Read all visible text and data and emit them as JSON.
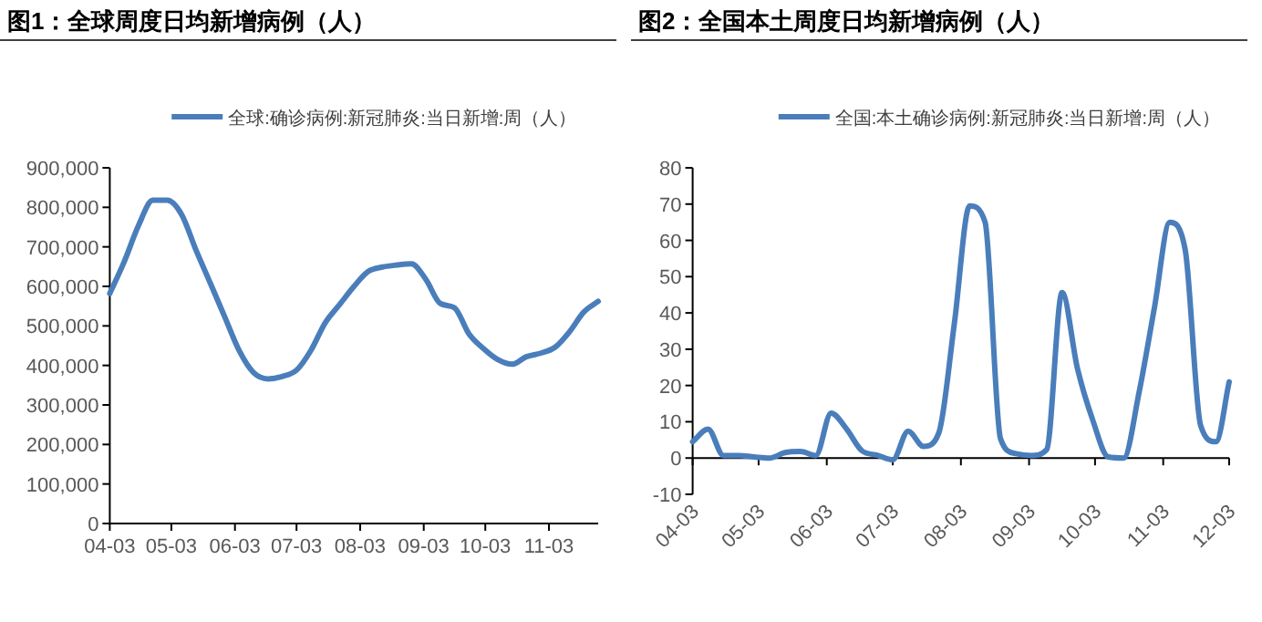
{
  "chart_data": [
    {
      "type": "line",
      "title": "图1：全球周度日均新增病例（人）",
      "legend": "top",
      "grid": false,
      "marker": "none",
      "line_style": "solid",
      "x": [
        "--04-03",
        "--04-10",
        "--04-17",
        "--04-24",
        "--05-01",
        "--05-08",
        "--05-15",
        "--05-22",
        "--05-29",
        "--06-05",
        "--06-12",
        "--06-19",
        "--06-26",
        "--07-03",
        "--07-10",
        "--07-17",
        "--07-24",
        "--07-31",
        "--08-07",
        "--08-14",
        "--08-21",
        "--08-28",
        "--09-04",
        "--09-11",
        "--09-18",
        "--09-25",
        "--10-02",
        "--10-09",
        "--10-16",
        "--10-23",
        "--10-30",
        "--11-06",
        "--11-13",
        "--11-20",
        "--11-27"
      ],
      "series": [
        {
          "name": "全球:确诊病例:新冠肺炎:当日新增:周（人）",
          "color": "#4a7ebb",
          "values": [
            582000,
            662000,
            754000,
            818000,
            818000,
            782000,
            692000,
            608000,
            523000,
            438000,
            382000,
            366000,
            372000,
            388000,
            438000,
            508000,
            554000,
            600000,
            638000,
            649000,
            654000,
            657000,
            618000,
            557000,
            546000,
            480000,
            443000,
            415000,
            403000,
            422000,
            431000,
            446000,
            485000,
            535000,
            562000
          ]
        }
      ],
      "xlim": [
        "--04-03",
        "--11-27"
      ],
      "xticks": [
        {
          "value": "--04-03",
          "label": "04-03"
        },
        {
          "value": "--05-03",
          "label": "05-03"
        },
        {
          "value": "--06-03",
          "label": "06-03"
        },
        {
          "value": "--07-03",
          "label": "07-03"
        },
        {
          "value": "--08-03",
          "label": "08-03"
        },
        {
          "value": "--09-03",
          "label": "09-03"
        },
        {
          "value": "--10-03",
          "label": "10-03"
        },
        {
          "value": "--11-03",
          "label": "11-03"
        }
      ],
      "ylim": [
        0,
        900000
      ],
      "yticks": [
        0,
        {
          "value": 100000,
          "label": "100,000"
        },
        {
          "value": 200000,
          "label": "200,000"
        },
        {
          "value": 300000,
          "label": "300,000"
        },
        {
          "value": 400000,
          "label": "400,000"
        },
        {
          "value": 500000,
          "label": "500,000"
        },
        {
          "value": 600000,
          "label": "600,000"
        },
        {
          "value": 700000,
          "label": "700,000"
        },
        {
          "value": 800000,
          "label": "800,000"
        },
        {
          "value": 900000,
          "label": "900,000"
        }
      ]
    },
    {
      "type": "line",
      "title": "图2：全国本土周度日均新增病例（人）",
      "legend": "top",
      "marker": "none",
      "line_style": "solid",
      "x": [
        "--04-03",
        "--04-10",
        "--04-17",
        "--04-24",
        "--05-01",
        "--05-08",
        "--05-15",
        "--05-22",
        "--05-29",
        "--06-05",
        "--06-12",
        "--06-19",
        "--06-26",
        "--07-03",
        "--07-10",
        "--07-17",
        "--07-24",
        "--07-31",
        "--08-07",
        "--08-14",
        "--08-21",
        "--08-28",
        "--09-04",
        "--09-11",
        "--09-18",
        "--09-25",
        "--10-02",
        "--10-09",
        "--10-16",
        "--10-23",
        "--10-30",
        "--11-06",
        "--11-13",
        "--11-20",
        "--11-27",
        "--12-03"
      ],
      "series": [
        {
          "name": "全国:本土确诊病例:新冠肺炎:当日新增:周（人）",
          "color": "#4a7ebb",
          "values": [
            4.5,
            8,
            0.7,
            0.7,
            0.3,
            0,
            1.5,
            1.8,
            0.7,
            12.4,
            8,
            2,
            0.8,
            -0.5,
            7.4,
            3.2,
            7,
            37,
            69.5,
            65,
            5.4,
            1.2,
            0.7,
            2.3,
            45.6,
            24.7,
            10.4,
            0.3,
            0,
            18,
            41.4,
            65,
            57.4,
            9,
            4.5,
            21
          ]
        }
      ],
      "xlim": [
        "--04-03",
        "--12-03"
      ],
      "xticks": [
        {
          "value": "--04-03",
          "label": "04-03"
        },
        {
          "value": "--05-03",
          "label": "05-03"
        },
        {
          "value": "--06-03",
          "label": "06-03"
        },
        {
          "value": "--07-03",
          "label": "07-03"
        },
        {
          "value": "--08-03",
          "label": "08-03"
        },
        {
          "value": "--09-03",
          "label": "09-03"
        },
        {
          "value": "--10-03",
          "label": "10-03"
        },
        {
          "value": "--11-03",
          "label": "11-03"
        },
        {
          "value": "--12-03",
          "label": "12-03"
        }
      ],
      "ylim": [
        -10,
        80
      ],
      "yticks": [
        -10,
        0,
        10,
        20,
        30,
        40,
        50,
        60,
        70,
        80
      ]
    }
  ]
}
